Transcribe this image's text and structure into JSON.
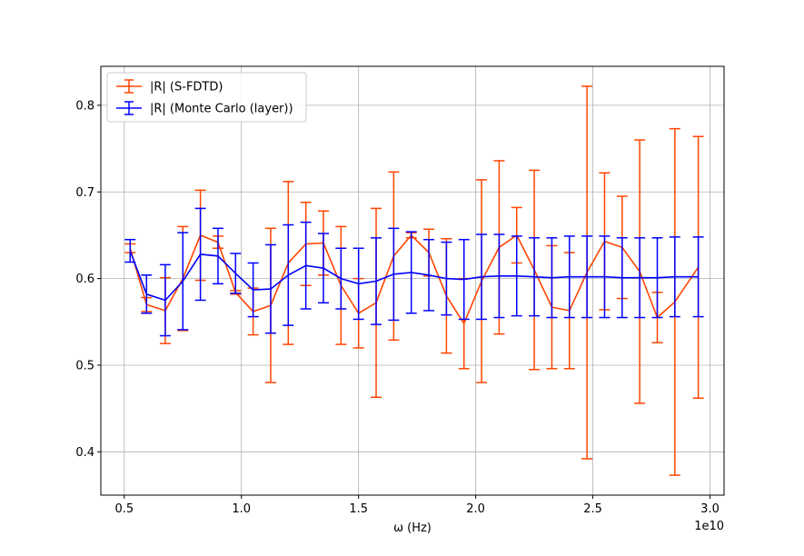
{
  "chart_data": {
    "type": "line",
    "xlabel": "ω (Hz)",
    "ylabel": "",
    "x_offset_label": "1e10",
    "xlim": [
      4000000000.0,
      30600000000.0
    ],
    "ylim": [
      0.35,
      0.845
    ],
    "xticks": [
      5000000000.0,
      10000000000.0,
      15000000000.0,
      20000000000.0,
      25000000000.0,
      30000000000.0
    ],
    "xtick_labels": [
      "0.5",
      "1.0",
      "1.5",
      "2.0",
      "2.5",
      "3.0"
    ],
    "yticks": [
      0.4,
      0.5,
      0.6,
      0.7,
      0.8
    ],
    "ytick_labels": [
      "0.4",
      "0.5",
      "0.6",
      "0.7",
      "0.8"
    ],
    "grid": true,
    "legend_position": "top-left",
    "x": [
      5250000000.0,
      5950000000.0,
      6750000000.0,
      7500000000.0,
      8250000000.0,
      9000000000.0,
      9750000000.0,
      10500000000.0,
      11250000000.0,
      12000000000.0,
      12750000000.0,
      13500000000.0,
      14250000000.0,
      15000000000.0,
      15750000000.0,
      16500000000.0,
      17250000000.0,
      18000000000.0,
      18750000000.0,
      19500000000.0,
      20250000000.0,
      21000000000.0,
      21750000000.0,
      22500000000.0,
      23250000000.0,
      24000000000.0,
      24750000000.0,
      25500000000.0,
      26250000000.0,
      27000000000.0,
      27750000000.0,
      28500000000.0,
      29500000000.0
    ],
    "series": [
      {
        "name": "|R| (S-FDTD)",
        "color": "#ff4500",
        "values": [
          0.635,
          0.57,
          0.563,
          0.6,
          0.65,
          0.642,
          0.584,
          0.562,
          0.569,
          0.618,
          0.64,
          0.641,
          0.592,
          0.56,
          0.572,
          0.626,
          0.65,
          0.63,
          0.58,
          0.548,
          0.597,
          0.636,
          0.65,
          0.61,
          0.567,
          0.563,
          0.607,
          0.643,
          0.636,
          0.608,
          0.555,
          0.573,
          0.613
        ],
        "errors": [
          0.005,
          0.008,
          0.038,
          0.06,
          0.052,
          0.007,
          0.002,
          0.027,
          0.089,
          0.094,
          0.048,
          0.037,
          0.068,
          0.04,
          0.109,
          0.097,
          0.003,
          0.027,
          0.066,
          0.052,
          0.117,
          0.1,
          0.032,
          0.115,
          0.071,
          0.067,
          0.215,
          0.079,
          0.059,
          0.152,
          0.029,
          0.2,
          0.151
        ]
      },
      {
        "name": "|R| (Monte Carlo (layer))",
        "color": "#0000ff",
        "values": [
          0.632,
          0.582,
          0.575,
          0.597,
          0.628,
          0.626,
          0.606,
          0.587,
          0.588,
          0.604,
          0.615,
          0.612,
          0.6,
          0.594,
          0.597,
          0.605,
          0.607,
          0.604,
          0.6,
          0.599,
          0.602,
          0.603,
          0.603,
          0.602,
          0.601,
          0.602,
          0.602,
          0.602,
          0.601,
          0.601,
          0.601,
          0.602,
          0.602
        ],
        "errors": [
          0.013,
          0.022,
          0.041,
          0.056,
          0.053,
          0.032,
          0.023,
          0.031,
          0.051,
          0.058,
          0.05,
          0.04,
          0.035,
          0.041,
          0.05,
          0.053,
          0.047,
          0.041,
          0.042,
          0.046,
          0.049,
          0.048,
          0.046,
          0.045,
          0.046,
          0.047,
          0.047,
          0.047,
          0.046,
          0.046,
          0.046,
          0.046,
          0.046
        ]
      }
    ]
  }
}
